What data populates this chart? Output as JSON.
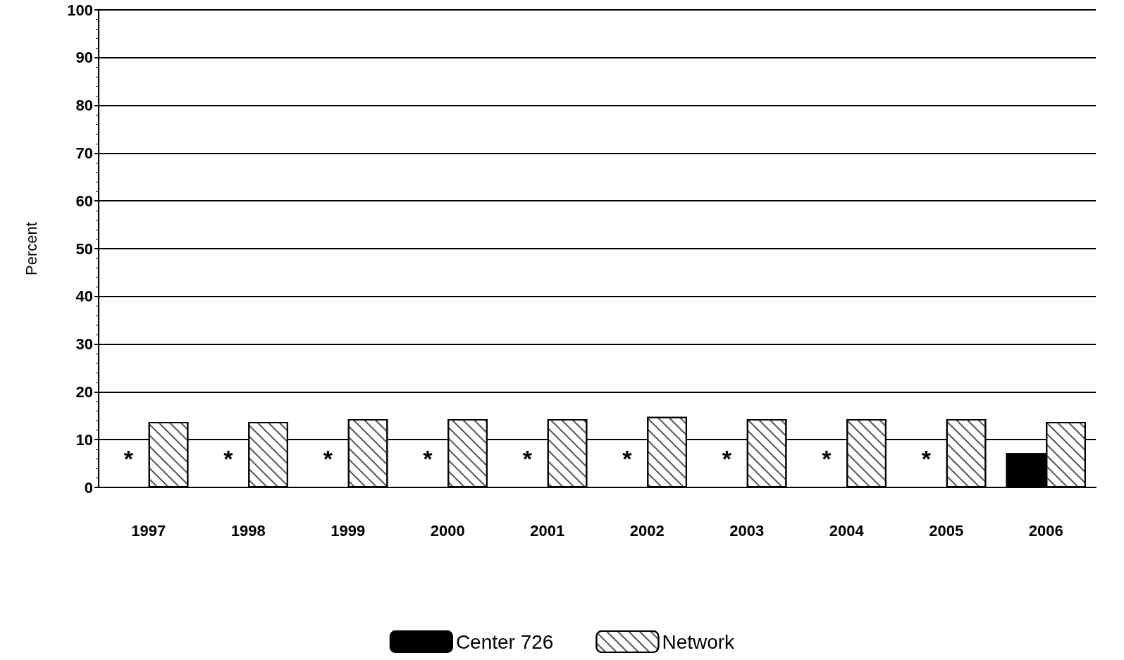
{
  "chart_data": {
    "type": "bar",
    "ylabel": "Percent",
    "categories": [
      "1997",
      "1998",
      "1999",
      "2000",
      "2001",
      "2002",
      "2003",
      "2004",
      "2005",
      "2006"
    ],
    "series": [
      {
        "name": "Center 726",
        "color": "#000000",
        "values": [
          null,
          null,
          null,
          null,
          null,
          null,
          null,
          null,
          null,
          7.2
        ]
      },
      {
        "name": "Network",
        "color": "#ffffff",
        "values": [
          13.7,
          13.7,
          14.3,
          14.3,
          14.3,
          14.8,
          14.3,
          14.3,
          14.3,
          13.7
        ]
      }
    ],
    "ylim": [
      0,
      100
    ],
    "yticks": [
      0,
      10,
      20,
      30,
      40,
      50,
      60,
      70,
      80,
      90,
      100
    ],
    "grid": "y",
    "legend": "bottom",
    "annotations": [
      {
        "text": "*",
        "x": "1997",
        "y": 6
      },
      {
        "text": "*",
        "x": "1998",
        "y": 6
      },
      {
        "text": "*",
        "x": "1999",
        "y": 6
      },
      {
        "text": "*",
        "x": "2000",
        "y": 6
      },
      {
        "text": "*",
        "x": "2001",
        "y": 6
      },
      {
        "text": "*",
        "x": "2002",
        "y": 6
      },
      {
        "text": "*",
        "x": "2003",
        "y": 6
      },
      {
        "text": "*",
        "x": "2004",
        "y": 6
      },
      {
        "text": "*",
        "x": "2005",
        "y": 6
      }
    ]
  }
}
